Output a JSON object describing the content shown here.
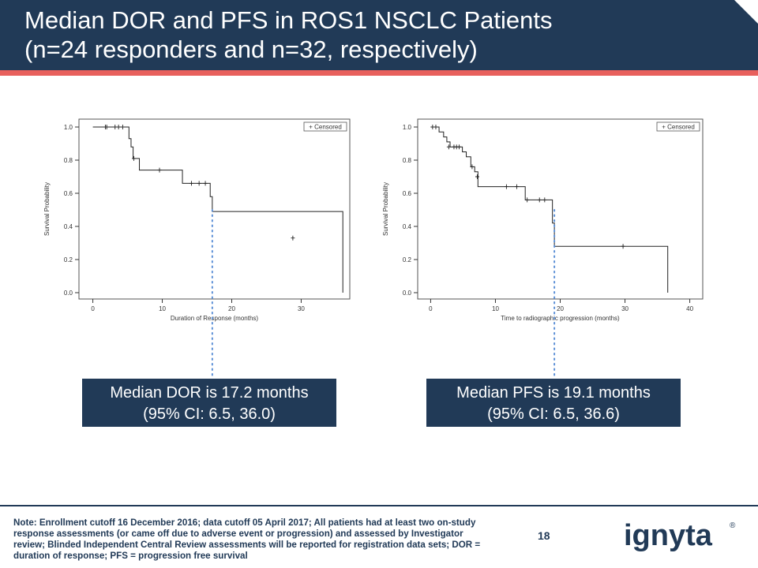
{
  "header": {
    "title_line1": "Median DOR and PFS in ROS1 NSCLC Patients",
    "title_line2": "(n=24 responders and n=32, respectively)"
  },
  "colors": {
    "navy": "#213a57",
    "accent": "#e8605d",
    "median_line": "#5b8fd6"
  },
  "chart_data": [
    {
      "type": "line",
      "subtype": "kaplan-meier",
      "xlabel": "Duration of Response (months)",
      "ylabel": "Survival Probability",
      "xlim": [
        -2,
        37
      ],
      "ylim": [
        0,
        1
      ],
      "xticks": [
        0,
        10,
        20,
        30
      ],
      "yticks": [
        0.0,
        0.2,
        0.4,
        0.6,
        0.8,
        1.0
      ],
      "ytick_labels": [
        "0.0",
        "0.2",
        "0.4",
        "0.6",
        "0.8",
        "1.0"
      ],
      "legend": "+ Censored",
      "step_x": [
        0,
        5.2,
        5.5,
        5.8,
        6.7,
        12.9,
        16.9,
        17.2,
        36.0,
        36.0
      ],
      "step_y": [
        1.0,
        0.93,
        0.88,
        0.81,
        0.74,
        0.66,
        0.58,
        0.49,
        0.33,
        0.0
      ],
      "censored": [
        [
          1.8,
          1.0
        ],
        [
          2.0,
          1.0
        ],
        [
          3.2,
          1.0
        ],
        [
          3.7,
          1.0
        ],
        [
          4.3,
          1.0
        ],
        [
          5.9,
          0.81
        ],
        [
          9.6,
          0.74
        ],
        [
          14.2,
          0.66
        ],
        [
          15.3,
          0.66
        ],
        [
          16.2,
          0.66
        ],
        [
          28.8,
          0.33
        ]
      ],
      "median": 17.2
    },
    {
      "type": "line",
      "subtype": "kaplan-meier",
      "xlabel": "Time to radiographic progression (months)",
      "ylabel": "Survival Probability",
      "xlim": [
        -2,
        42
      ],
      "ylim": [
        0,
        1
      ],
      "xticks": [
        0,
        10,
        20,
        30,
        40
      ],
      "yticks": [
        0.0,
        0.2,
        0.4,
        0.6,
        0.8,
        1.0
      ],
      "ytick_labels": [
        "0.0",
        "0.2",
        "0.4",
        "0.6",
        "0.8",
        "1.0"
      ],
      "legend": "+ Censored",
      "step_x": [
        0,
        1.3,
        2.0,
        2.5,
        3.0,
        4.9,
        5.5,
        6.2,
        6.8,
        7.3,
        14.6,
        18.8,
        19.1,
        36.6,
        36.6
      ],
      "step_y": [
        1.0,
        0.97,
        0.94,
        0.91,
        0.88,
        0.85,
        0.82,
        0.76,
        0.73,
        0.64,
        0.56,
        0.42,
        0.28,
        0.28,
        0.0
      ],
      "censored": [
        [
          0.3,
          1.0
        ],
        [
          0.8,
          1.0
        ],
        [
          2.8,
          0.88
        ],
        [
          3.6,
          0.88
        ],
        [
          4.0,
          0.88
        ],
        [
          4.4,
          0.88
        ],
        [
          6.4,
          0.76
        ],
        [
          7.2,
          0.7
        ],
        [
          11.7,
          0.64
        ],
        [
          13.3,
          0.64
        ],
        [
          14.9,
          0.56
        ],
        [
          16.8,
          0.56
        ],
        [
          17.6,
          0.56
        ],
        [
          29.7,
          0.28
        ]
      ],
      "median": 19.1
    }
  ],
  "callouts": [
    {
      "line1": "Median DOR is 17.2 months",
      "line2": "(95% CI: 6.5, 36.0)"
    },
    {
      "line1": "Median PFS is 19.1 months",
      "line2": "(95% CI: 6.5, 36.6)"
    }
  ],
  "footer": {
    "note": "Note: Enrollment cutoff 16 December 2016; data cutoff 05 April 2017; All patients had at least two on-study response assessments (or came off due to adverse event or progression) and assessed by Investigator review; Blinded Independent Central Review assessments will be reported for registration data sets; DOR = duration of response; PFS = progression free survival",
    "page_number": "18",
    "logo_text": "ignyta",
    "logo_mark": "®"
  }
}
